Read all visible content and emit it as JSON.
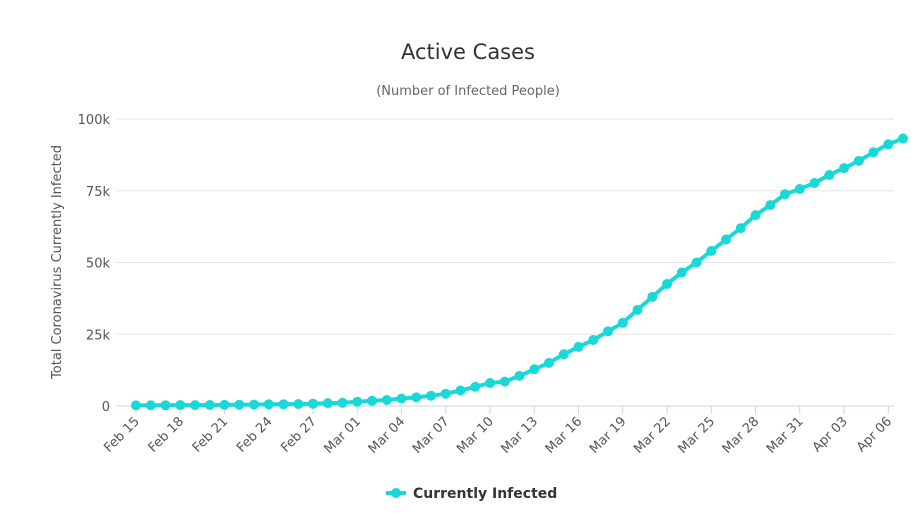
{
  "chart_data": {
    "type": "line",
    "title": "Active Cases",
    "subtitle": "(Number of Infected People)",
    "xlabel": "",
    "ylabel": "Total Coronavirus Currently Infected",
    "ylim": [
      0,
      100000
    ],
    "y_ticks": [
      {
        "value": 0,
        "label": "0"
      },
      {
        "value": 25000,
        "label": "25k"
      },
      {
        "value": 50000,
        "label": "50k"
      },
      {
        "value": 75000,
        "label": "75k"
      },
      {
        "value": 100000,
        "label": "100k"
      }
    ],
    "grid": true,
    "legend_position": "bottom",
    "x_tick_labels": [
      "Feb 15",
      "Feb 18",
      "Feb 21",
      "Feb 24",
      "Feb 27",
      "Mar 01",
      "Mar 04",
      "Mar 07",
      "Mar 10",
      "Mar 13",
      "Mar 16",
      "Mar 19",
      "Mar 22",
      "Mar 25",
      "Mar 28",
      "Mar 31",
      "Apr 03",
      "Apr 06"
    ],
    "x": [
      "Feb 15",
      "Feb 16",
      "Feb 17",
      "Feb 18",
      "Feb 19",
      "Feb 20",
      "Feb 21",
      "Feb 22",
      "Feb 23",
      "Feb 24",
      "Feb 25",
      "Feb 26",
      "Feb 27",
      "Feb 28",
      "Feb 29",
      "Mar 01",
      "Mar 02",
      "Mar 03",
      "Mar 04",
      "Mar 05",
      "Mar 06",
      "Mar 07",
      "Mar 08",
      "Mar 09",
      "Mar 10",
      "Mar 11",
      "Mar 12",
      "Mar 13",
      "Mar 14",
      "Mar 15",
      "Mar 16",
      "Mar 17",
      "Mar 18",
      "Mar 19",
      "Mar 20",
      "Mar 21",
      "Mar 22",
      "Mar 23",
      "Mar 24",
      "Mar 25",
      "Mar 26",
      "Mar 27",
      "Mar 28",
      "Mar 29",
      "Mar 30",
      "Mar 31",
      "Apr 01",
      "Apr 02",
      "Apr 03",
      "Apr 04",
      "Apr 05",
      "Apr 06"
    ],
    "series": [
      {
        "name": "Currently Infected",
        "color": "#1ad8d8",
        "values": [
          200,
          250,
          250,
          300,
          300,
          350,
          400,
          450,
          500,
          600,
          600,
          700,
          800,
          1000,
          1100,
          1500,
          1800,
          2100,
          2600,
          3000,
          3600,
          4300,
          5400,
          6700,
          8000,
          8500,
          10500,
          12800,
          15000,
          18000,
          20600,
          23000,
          26000,
          29000,
          33500,
          38000,
          42500,
          46500,
          50000,
          54000,
          58000,
          62000,
          66500,
          70000,
          73800,
          75600,
          77700,
          80500,
          82900,
          85400,
          88400,
          91200
        ]
      }
    ],
    "last_point": {
      "x": "Apr 07",
      "value": 93200
    }
  }
}
